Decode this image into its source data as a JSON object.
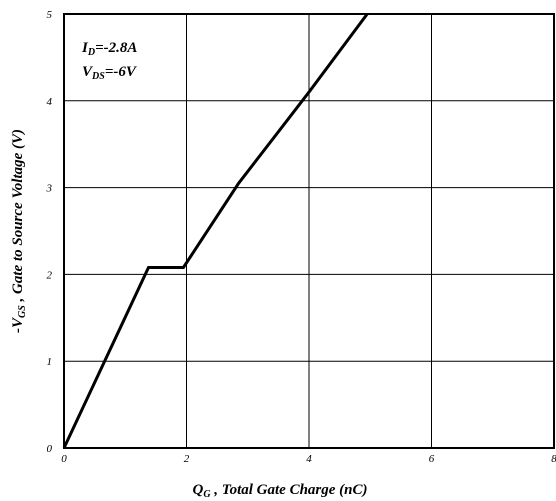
{
  "chart_data": {
    "type": "line",
    "xlabel_main": "Q",
    "xlabel_sub": "G",
    "xlabel_rest": " , Total Gate Charge (nC)",
    "ylabel_main": "-V",
    "ylabel_sub": "GS",
    "ylabel_rest": " , Gate to Source Voltage (V)",
    "xlim": [
      0,
      8
    ],
    "ylim": [
      0,
      5
    ],
    "x_ticks": [
      "0",
      "2",
      "4",
      "6",
      "8"
    ],
    "y_ticks": [
      "0",
      "1",
      "2",
      "3",
      "4",
      "5"
    ],
    "grid": true,
    "annotations": {
      "line1_main": "I",
      "line1_sub": "D",
      "line1_rest": "=-2.8A",
      "line2_main": "V",
      "line2_sub": "DS",
      "line2_rest": "=-6V"
    },
    "series": [
      {
        "x": [
          0,
          1.38,
          1.95,
          2.85,
          4.0,
          4.95
        ],
        "y": [
          0,
          2.08,
          2.08,
          3.05,
          4.1,
          5.0
        ]
      }
    ]
  }
}
